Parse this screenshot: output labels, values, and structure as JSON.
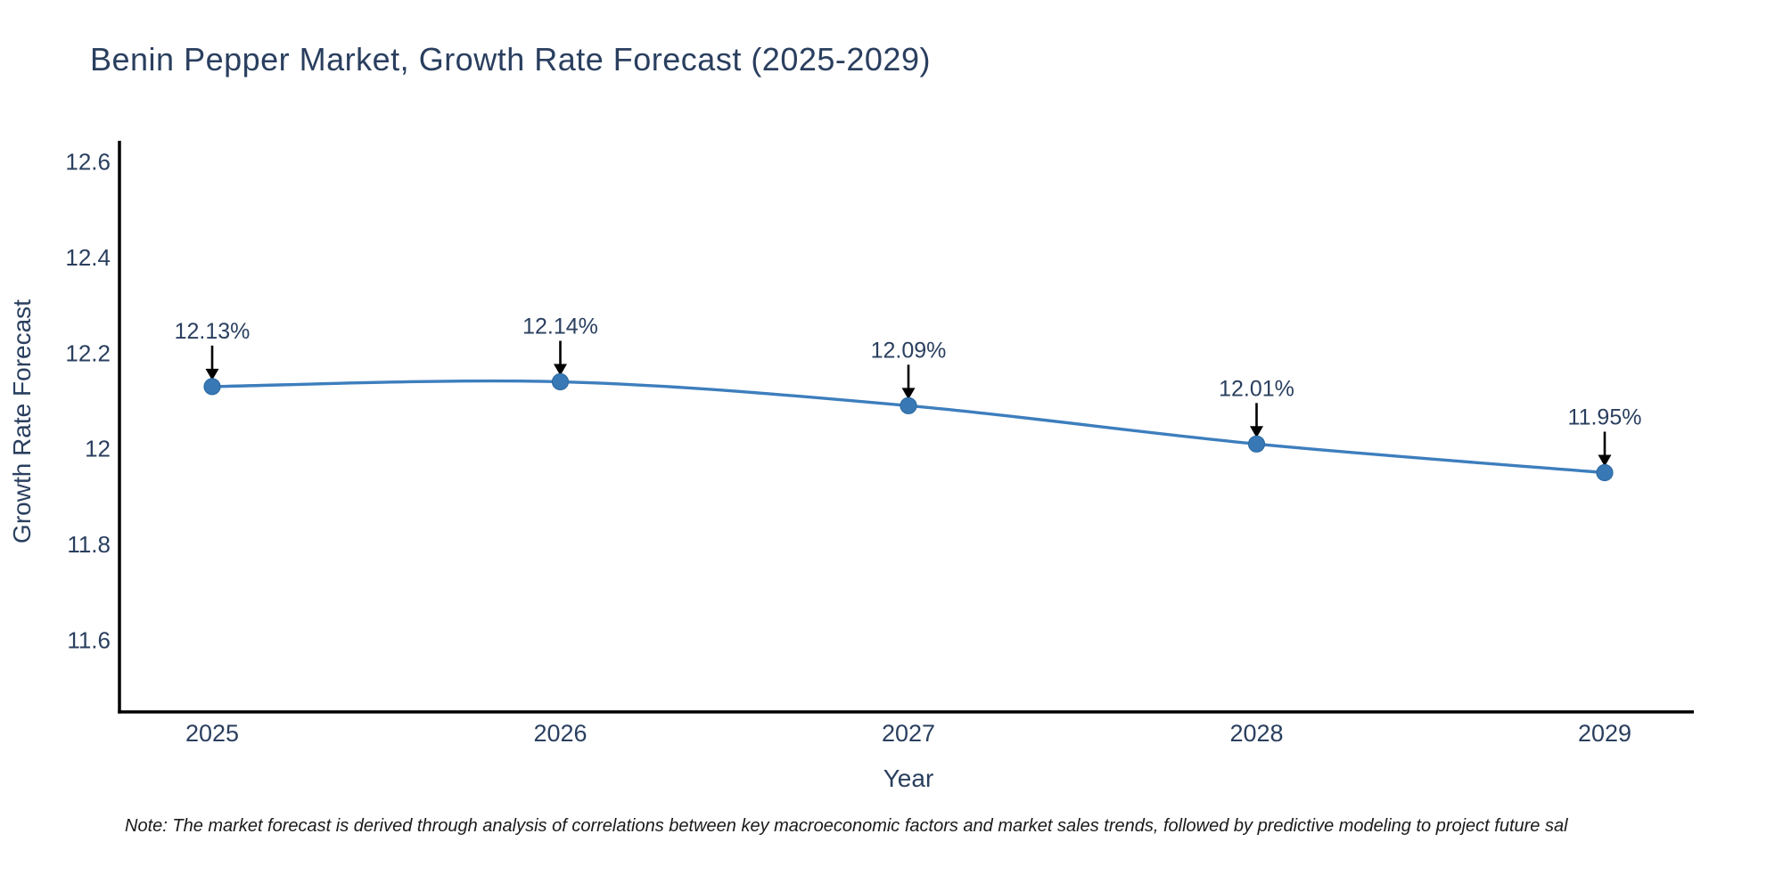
{
  "chart_data": {
    "type": "line",
    "title": "Benin Pepper Market, Growth Rate Forecast (2025-2029)",
    "xlabel": "Year",
    "ylabel": "Growth Rate Forecast",
    "categories": [
      "2025",
      "2026",
      "2027",
      "2028",
      "2029"
    ],
    "series": [
      {
        "name": "Growth Rate Forecast",
        "values": [
          12.13,
          12.14,
          12.09,
          12.01,
          11.95
        ]
      }
    ],
    "point_labels": [
      "12.13%",
      "12.14%",
      "12.09%",
      "12.01%",
      "11.95%"
    ],
    "ytick_values": [
      12.6,
      12.4,
      12.2,
      12.0,
      11.8,
      11.6
    ],
    "ytick_labels": [
      "12.6",
      "12.4",
      "12.2",
      "12",
      "11.8",
      "11.6"
    ],
    "ylim": [
      11.45,
      12.64
    ],
    "grid": false,
    "legend_position": "none",
    "line_color": "#3d7ebd",
    "marker_color": "#3879b5",
    "marker_edge_color": "#2d6ba3",
    "axis_color": "#000000",
    "text_color": "#2a3f5f",
    "annotation_color": "#2a3f5f",
    "arrow_color": "#000000"
  },
  "note": {
    "text": "Note: The market forecast is derived through analysis of correlations between key macroeconomic factors and market sales trends, followed by predictive modeling to project future sal",
    "color": "#1a1a1a"
  }
}
